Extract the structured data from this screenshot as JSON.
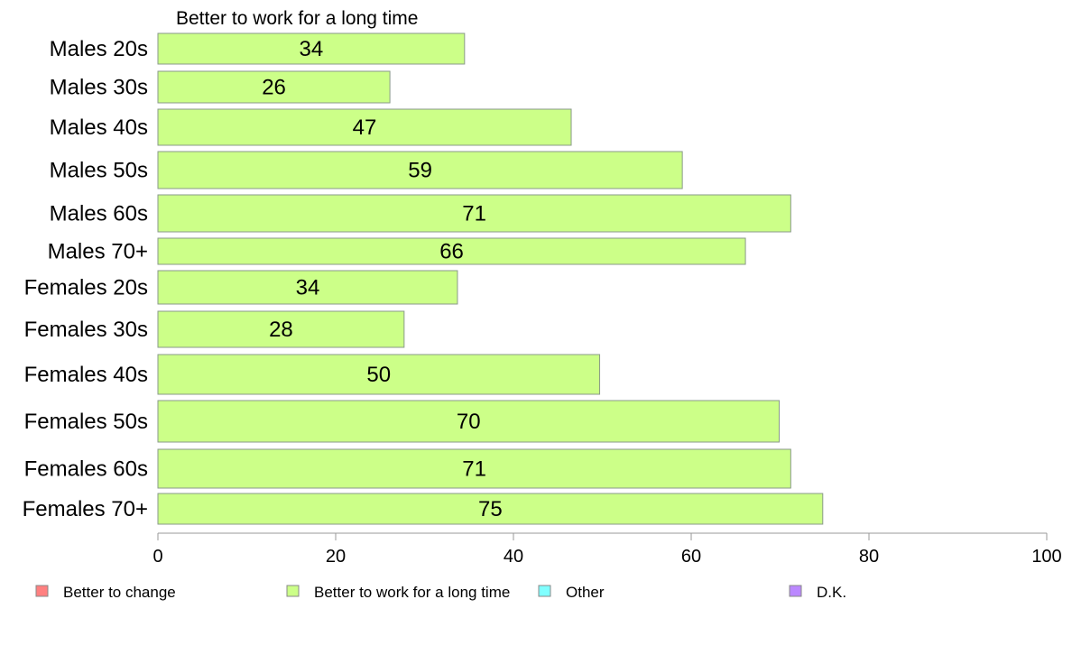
{
  "chart_data": {
    "type": "bar",
    "orientation": "horizontal",
    "series_title": "Better to work for a long time",
    "categories": [
      "Males 20s",
      "Males 30s",
      "Males 40s",
      "Males 50s",
      "Males 60s",
      "Males 70+",
      "Females 20s",
      "Females 30s",
      "Females 40s",
      "Females 50s",
      "Females 60s",
      "Females 70+"
    ],
    "series": [
      {
        "name": "Better to work for a long time",
        "values": [
          34.5,
          26.1,
          46.5,
          59,
          71.2,
          66.1,
          33.7,
          27.7,
          49.7,
          69.9,
          71.2,
          74.8
        ],
        "labels": [
          "34",
          "26",
          "47",
          "59",
          "71",
          "66",
          "34",
          "28",
          "50",
          "70",
          "71",
          "75"
        ],
        "color": "#ccff88"
      }
    ],
    "xlim": [
      0,
      100
    ],
    "xticks": [
      0,
      20,
      40,
      60,
      80,
      100
    ],
    "xtick_labels": [
      "0",
      "20",
      "40",
      "60",
      "80",
      "100"
    ],
    "grid": false,
    "legend": {
      "position": "bottom",
      "entries": [
        {
          "label": "Better to change",
          "color": "#ff8080"
        },
        {
          "label": "Better to work for a long time",
          "color": "#ccff88"
        },
        {
          "label": "Other",
          "color": "#80ffff"
        },
        {
          "label": "D.K.",
          "color": "#bb88ff"
        }
      ]
    }
  }
}
